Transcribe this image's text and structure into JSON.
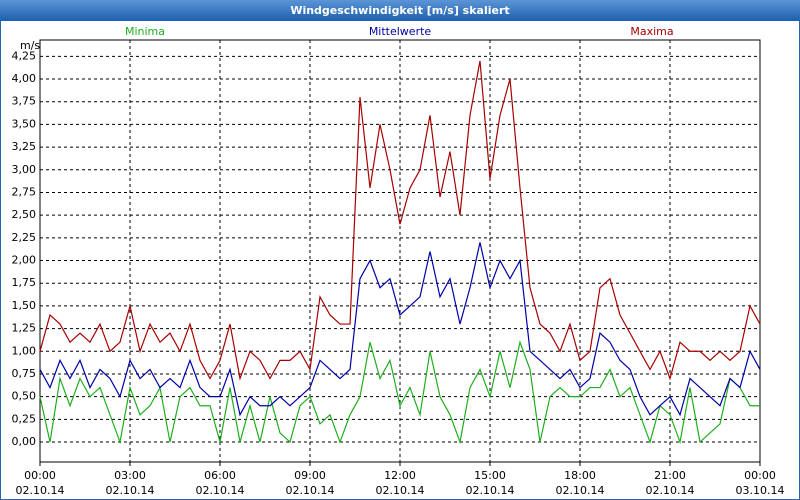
{
  "chart_data": {
    "type": "line",
    "title": "Windgeschwindigkeit [m/s] skaliert",
    "y_label": "m/s",
    "x": [
      0,
      20,
      40,
      60,
      80,
      100,
      120,
      140,
      160,
      180,
      200,
      220,
      240,
      260,
      280,
      300,
      320,
      340,
      360,
      380,
      400,
      420,
      440,
      460,
      480,
      500,
      520,
      540,
      560,
      580,
      600,
      620,
      640,
      660,
      680,
      700,
      720,
      740,
      760,
      780,
      800,
      820,
      840,
      860,
      880,
      900,
      920,
      940,
      960,
      980,
      1000,
      1020,
      1040,
      1060,
      1080,
      1100,
      1120,
      1140,
      1160,
      1180,
      1200,
      1220,
      1240,
      1260,
      1280,
      1300,
      1320,
      1340,
      1360,
      1380,
      1400,
      1420,
      1440
    ],
    "xlim": [
      0,
      1440
    ],
    "xticks": [
      {
        "value": 0,
        "label": "00:00",
        "date": "02.10.14"
      },
      {
        "value": 180,
        "label": "03:00",
        "date": "02.10.14"
      },
      {
        "value": 360,
        "label": "06:00",
        "date": "02.10.14"
      },
      {
        "value": 540,
        "label": "09:00",
        "date": "02.10.14"
      },
      {
        "value": 720,
        "label": "12:00",
        "date": "02.10.14"
      },
      {
        "value": 900,
        "label": "15:00",
        "date": "02.10.14"
      },
      {
        "value": 1080,
        "label": "18:00",
        "date": "02.10.14"
      },
      {
        "value": 1260,
        "label": "21:00",
        "date": "02.10.14"
      },
      {
        "value": 1440,
        "label": "00:00",
        "date": "03.10.14"
      }
    ],
    "ylim": [
      -0.22,
      4.43
    ],
    "yticks": [
      {
        "value": 0,
        "label": "0,00"
      },
      {
        "value": 0.25,
        "label": "0,25"
      },
      {
        "value": 0.5,
        "label": "0,50"
      },
      {
        "value": 0.75,
        "label": "0,75"
      },
      {
        "value": 1,
        "label": "1,00"
      },
      {
        "value": 1.25,
        "label": "1,25"
      },
      {
        "value": 1.5,
        "label": "1,50"
      },
      {
        "value": 1.75,
        "label": "1,75"
      },
      {
        "value": 2,
        "label": "2,00"
      },
      {
        "value": 2.25,
        "label": "2,25"
      },
      {
        "value": 2.5,
        "label": "2,50"
      },
      {
        "value": 2.75,
        "label": "2,75"
      },
      {
        "value": 3,
        "label": "3,00"
      },
      {
        "value": 3.25,
        "label": "3,25"
      },
      {
        "value": 3.5,
        "label": "3,50"
      },
      {
        "value": 3.75,
        "label": "3,75"
      },
      {
        "value": 4,
        "label": "4,00"
      },
      {
        "value": 4.25,
        "label": "4,25"
      }
    ],
    "grid": true,
    "series": [
      {
        "name": "Minima",
        "color": "#1fae1f",
        "values": [
          0.5,
          0.0,
          0.7,
          0.4,
          0.7,
          0.5,
          0.6,
          0.3,
          0.0,
          0.6,
          0.3,
          0.4,
          0.6,
          0.0,
          0.5,
          0.6,
          0.4,
          0.4,
          0.0,
          0.6,
          0.0,
          0.4,
          0.0,
          0.5,
          0.1,
          0.0,
          0.4,
          0.5,
          0.2,
          0.3,
          0.0,
          0.3,
          0.5,
          1.1,
          0.7,
          0.9,
          0.4,
          0.6,
          0.3,
          1.0,
          0.5,
          0.3,
          0.0,
          0.6,
          0.8,
          0.5,
          1.0,
          0.6,
          1.1,
          0.8,
          0.0,
          0.5,
          0.6,
          0.5,
          0.5,
          0.6,
          0.6,
          0.8,
          0.5,
          0.6,
          0.3,
          0.0,
          0.4,
          0.3,
          0.0,
          0.6,
          0.0,
          0.1,
          0.2,
          0.7,
          0.6,
          0.4,
          0.4
        ]
      },
      {
        "name": "Mittelwerte",
        "color": "#0000a8",
        "values": [
          0.8,
          0.6,
          0.9,
          0.7,
          0.9,
          0.6,
          0.8,
          0.7,
          0.5,
          0.9,
          0.7,
          0.8,
          0.6,
          0.7,
          0.6,
          0.9,
          0.6,
          0.5,
          0.5,
          0.8,
          0.3,
          0.5,
          0.4,
          0.4,
          0.5,
          0.4,
          0.5,
          0.6,
          0.9,
          0.8,
          0.7,
          0.8,
          1.8,
          2.0,
          1.7,
          1.8,
          1.4,
          1.5,
          1.6,
          2.1,
          1.6,
          1.8,
          1.3,
          1.7,
          2.2,
          1.7,
          2.0,
          1.8,
          2.0,
          1.0,
          0.9,
          0.8,
          0.7,
          0.8,
          0.6,
          0.7,
          1.2,
          1.1,
          0.9,
          0.8,
          0.5,
          0.3,
          0.4,
          0.5,
          0.3,
          0.7,
          0.6,
          0.5,
          0.4,
          0.7,
          0.6,
          1.0,
          0.8
        ]
      },
      {
        "name": "Maxima",
        "color": "#a80000",
        "values": [
          1.0,
          1.4,
          1.3,
          1.1,
          1.2,
          1.1,
          1.3,
          1.0,
          1.1,
          1.5,
          1.0,
          1.3,
          1.1,
          1.2,
          1.0,
          1.3,
          0.9,
          0.7,
          0.9,
          1.3,
          0.7,
          1.0,
          0.9,
          0.7,
          0.9,
          0.9,
          1.0,
          0.8,
          1.6,
          1.4,
          1.3,
          1.3,
          3.8,
          2.8,
          3.5,
          3.0,
          2.4,
          2.8,
          3.0,
          3.6,
          2.7,
          3.2,
          2.5,
          3.6,
          4.2,
          2.9,
          3.6,
          4.0,
          2.8,
          1.7,
          1.3,
          1.2,
          1.0,
          1.3,
          0.9,
          1.0,
          1.7,
          1.8,
          1.4,
          1.2,
          1.0,
          0.8,
          1.0,
          0.7,
          1.1,
          1.0,
          1.0,
          0.9,
          1.0,
          0.9,
          1.0,
          1.5,
          1.3
        ]
      }
    ]
  }
}
